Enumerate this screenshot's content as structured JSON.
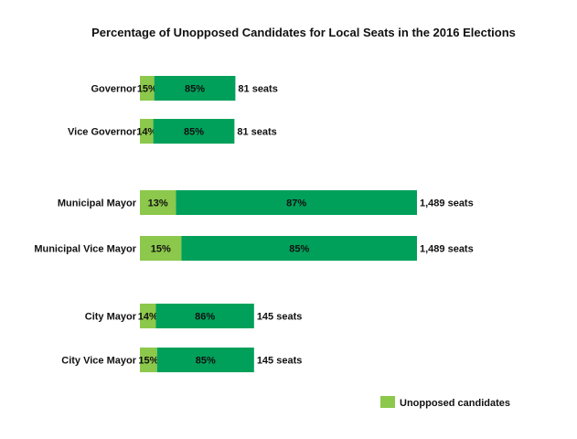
{
  "chart_data": {
    "type": "bar",
    "title": "Percentage of Unopposed Candidates for Local Seats in the 2016 Elections",
    "orientation": "horizontal",
    "stacked": true,
    "normalized": true,
    "categories": [
      "Governor",
      "Vice Governor",
      "Municipal Mayor",
      "Municipal Vice Mayor",
      "City Mayor",
      "City Vice Mayor"
    ],
    "groups": [
      [
        0,
        1
      ],
      [
        2,
        3
      ],
      [
        4,
        5
      ]
    ],
    "series": [
      {
        "name": "Unopposed candidates",
        "color": "#8cc84b",
        "values": [
          15,
          14,
          13,
          15,
          14,
          15
        ],
        "labels": [
          "15%",
          "14%",
          "13%",
          "15%",
          "14%",
          "15%"
        ]
      },
      {
        "color": "#00a05a",
        "values": [
          85,
          85,
          87,
          85,
          86,
          85
        ],
        "labels": [
          "85%",
          "85%",
          "87%",
          "85%",
          "86%",
          "85%"
        ]
      }
    ],
    "seat_counts": [
      81,
      81,
      1489,
      1489,
      145,
      145
    ],
    "seat_labels": [
      "81 seats",
      "81 seats",
      "1,489 seats",
      "1,489 seats",
      "145 seats",
      "145 seats"
    ],
    "legend": {
      "position": "bottom-right",
      "entries": [
        "Unopposed candidates"
      ]
    },
    "grid": false,
    "xlabel": "",
    "ylabel": ""
  }
}
